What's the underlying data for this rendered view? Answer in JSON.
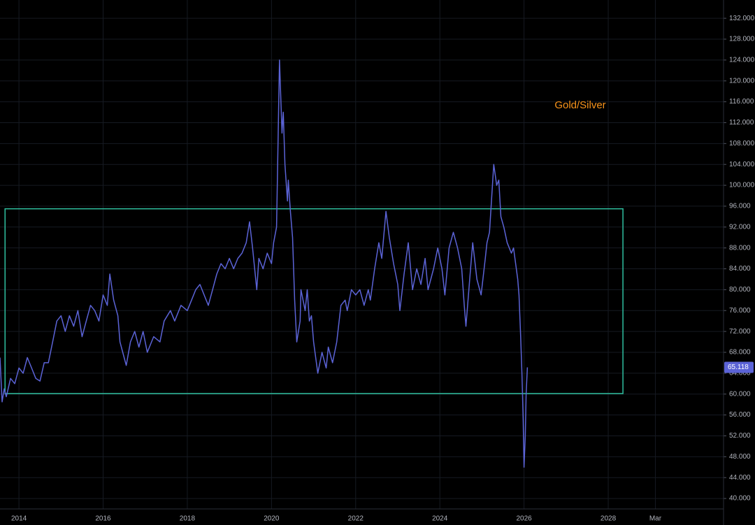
{
  "chart_data": {
    "type": "line",
    "x": [
      2013.55,
      2013.6,
      2013.65,
      2013.7,
      2013.8,
      2013.9,
      2014.0,
      2014.1,
      2014.2,
      2014.3,
      2014.4,
      2014.5,
      2014.6,
      2014.7,
      2014.8,
      2014.9,
      2015.0,
      2015.1,
      2015.2,
      2015.3,
      2015.4,
      2015.5,
      2015.6,
      2015.7,
      2015.8,
      2015.9,
      2016.0,
      2016.1,
      2016.16,
      2016.25,
      2016.35,
      2016.4,
      2016.5,
      2016.55,
      2016.65,
      2016.75,
      2016.85,
      2016.95,
      2017.05,
      2017.2,
      2017.35,
      2017.45,
      2017.6,
      2017.7,
      2017.85,
      2018.0,
      2018.1,
      2018.2,
      2018.3,
      2018.4,
      2018.5,
      2018.6,
      2018.7,
      2018.8,
      2018.9,
      2019.0,
      2019.1,
      2019.2,
      2019.3,
      2019.4,
      2019.48,
      2019.55,
      2019.65,
      2019.7,
      2019.8,
      2019.9,
      2020.0,
      2020.05,
      2020.12,
      2020.19,
      2020.25,
      2020.28,
      2020.32,
      2020.38,
      2020.4,
      2020.45,
      2020.5,
      2020.55,
      2020.6,
      2020.68,
      2020.7,
      2020.75,
      2020.8,
      2020.85,
      2020.9,
      2020.95,
      2021.0,
      2021.05,
      2021.1,
      2021.2,
      2021.3,
      2021.35,
      2021.45,
      2021.55,
      2021.65,
      2021.75,
      2021.8,
      2021.9,
      2022.0,
      2022.1,
      2022.2,
      2022.3,
      2022.35,
      2022.45,
      2022.55,
      2022.62,
      2022.72,
      2022.8,
      2022.9,
      2023.0,
      2023.05,
      2023.15,
      2023.25,
      2023.35,
      2023.45,
      2023.55,
      2023.65,
      2023.72,
      2023.85,
      2023.95,
      2024.05,
      2024.12,
      2024.22,
      2024.32,
      2024.42,
      2024.52,
      2024.58,
      2024.62,
      2024.72,
      2024.78,
      2024.88,
      2024.98,
      2025.08,
      2025.12,
      2025.18,
      2025.28,
      2025.35,
      2025.4,
      2025.45,
      2025.52,
      2025.6,
      2025.7,
      2025.75,
      2025.8,
      2025.85,
      2025.88,
      2025.92,
      2025.95,
      2025.98,
      2026.0,
      2026.03,
      2026.05,
      2026.08
    ],
    "series": [
      {
        "name": "Gold/Silver",
        "color": "#5b63d6",
        "values": [
          67,
          58.5,
          61,
          59.5,
          63,
          62,
          65,
          64,
          67,
          65,
          63,
          62.5,
          66,
          66,
          70,
          74,
          75,
          72,
          75,
          73,
          76,
          71,
          74,
          77,
          76,
          74,
          79,
          77,
          83,
          78,
          75,
          70,
          67,
          65.5,
          70,
          72,
          69,
          72,
          68,
          71,
          70,
          74,
          76,
          74,
          77,
          76,
          78,
          80,
          81,
          79,
          77,
          80,
          83,
          85,
          84,
          86,
          84,
          86,
          87,
          89,
          93,
          88,
          80,
          86,
          84,
          87,
          85,
          89,
          92,
          124,
          110,
          114,
          104,
          97,
          101,
          95,
          90,
          78,
          70,
          74,
          80,
          78,
          76,
          80,
          74,
          75,
          70,
          67,
          64,
          68,
          65,
          69,
          66,
          70,
          77,
          78,
          76,
          80,
          79,
          80,
          77,
          80,
          78,
          84,
          89,
          86,
          95,
          90,
          85,
          81,
          76,
          83,
          89,
          80,
          84,
          81,
          86,
          80,
          84,
          88,
          84,
          79,
          88,
          91,
          88,
          84,
          77,
          73,
          83,
          89,
          82,
          79,
          86,
          89,
          91,
          104,
          100,
          101,
          94,
          92,
          89,
          87,
          88,
          85,
          82,
          79,
          71,
          64,
          55,
          46,
          52,
          60,
          65.118
        ]
      }
    ],
    "annotation_color": "#f7931a",
    "box": {
      "x": [
        2013.67,
        2028.35
      ],
      "y": [
        60.1,
        95.5
      ],
      "color": "#2fbf9f"
    },
    "xlim": [
      2013.55,
      2030.74
    ],
    "ylim": [
      38,
      135.5
    ],
    "xticks": [
      2014,
      2016,
      2018,
      2020,
      2022,
      2024,
      2026,
      2028,
      {
        "value": 2029.12,
        "label": "Mar"
      }
    ],
    "yticks": [
      {
        "value": 40,
        "label": "40.000"
      },
      {
        "value": 44,
        "label": "44.000"
      },
      {
        "value": 48,
        "label": "48.000"
      },
      {
        "value": 52,
        "label": "52.000"
      },
      {
        "value": 56,
        "label": "56.000"
      },
      {
        "value": 60,
        "label": "60.000"
      },
      {
        "value": 64,
        "label": "64.000"
      },
      {
        "value": 68,
        "label": "68.000"
      },
      {
        "value": 72,
        "label": "72.000"
      },
      {
        "value": 76,
        "label": "76.000"
      },
      {
        "value": 80,
        "label": "80.000"
      },
      {
        "value": 84,
        "label": "84.000"
      },
      {
        "value": 88,
        "label": "88.000"
      },
      {
        "value": 92,
        "label": "92.000"
      },
      {
        "value": 96,
        "label": "96.000"
      },
      {
        "value": 100,
        "label": "100.000"
      },
      {
        "value": 104,
        "label": "104.000"
      },
      {
        "value": 108,
        "label": "108.000"
      },
      {
        "value": 112,
        "label": "112.000"
      },
      {
        "value": 116,
        "label": "116.000"
      },
      {
        "value": 120,
        "label": "120.000"
      },
      {
        "value": 124,
        "label": "124.000"
      },
      {
        "value": 128,
        "label": "128.000"
      },
      {
        "value": 132,
        "label": "132.000"
      }
    ],
    "grid": true
  }
}
